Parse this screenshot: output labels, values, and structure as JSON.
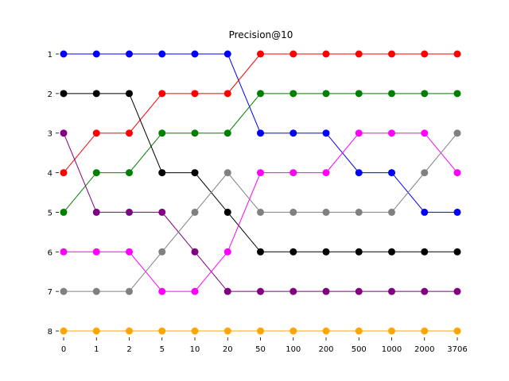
{
  "chart_data": {
    "type": "line",
    "title": "Precision@10",
    "xlabel": "",
    "ylabel": "",
    "categories": [
      "0",
      "1",
      "2",
      "5",
      "10",
      "20",
      "50",
      "100",
      "200",
      "500",
      "1000",
      "2000",
      "3706"
    ],
    "y_ticks": [
      1,
      2,
      3,
      4,
      5,
      6,
      7,
      8
    ],
    "ylim": [
      8,
      1
    ],
    "y_inverted": true,
    "grid": false,
    "legend": "none",
    "series": [
      {
        "color": "#0000ff",
        "values": [
          1,
          1,
          1,
          1,
          1,
          1,
          3,
          3,
          3,
          4,
          4,
          5,
          5
        ]
      },
      {
        "color": "#ff0000",
        "values": [
          4,
          3,
          3,
          2,
          2,
          2,
          1,
          1,
          1,
          1,
          1,
          1,
          1
        ]
      },
      {
        "color": "#008000",
        "values": [
          5,
          4,
          4,
          3,
          3,
          3,
          2,
          2,
          2,
          2,
          2,
          2,
          2
        ]
      },
      {
        "color": "#000000",
        "values": [
          2,
          2,
          2,
          4,
          4,
          5,
          6,
          6,
          6,
          6,
          6,
          6,
          6
        ]
      },
      {
        "color": "#800080",
        "values": [
          3,
          5,
          5,
          5,
          6,
          7,
          7,
          7,
          7,
          7,
          7,
          7,
          7
        ]
      },
      {
        "color": "#ff00ff",
        "values": [
          6,
          6,
          6,
          7,
          7,
          6,
          4,
          4,
          4,
          3,
          3,
          3,
          4
        ]
      },
      {
        "color": "#808080",
        "values": [
          7,
          7,
          7,
          6,
          5,
          4,
          5,
          5,
          5,
          5,
          5,
          4,
          3
        ]
      },
      {
        "color": "#ffa500",
        "values": [
          8,
          8,
          8,
          8,
          8,
          8,
          8,
          8,
          8,
          8,
          8,
          8,
          8
        ]
      }
    ]
  }
}
